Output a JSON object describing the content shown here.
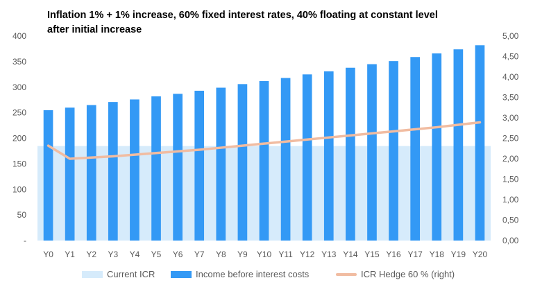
{
  "colors": {
    "area": "#D6EBFB",
    "bar": "#3399F5",
    "line": "#F1BCA1",
    "text": "#595959"
  },
  "chart_data": {
    "type": "bar",
    "title_line1": "Inflation 1% + 1% increase, 60% fixed interest rates, 40% floating at constant level",
    "title_line2": "after initial increase",
    "categories": [
      "Y0",
      "Y1",
      "Y2",
      "Y3",
      "Y4",
      "Y5",
      "Y6",
      "Y7",
      "Y8",
      "Y9",
      "Y10",
      "Y11",
      "Y12",
      "Y13",
      "Y14",
      "Y15",
      "Y16",
      "Y17",
      "Y18",
      "Y19",
      "Y20"
    ],
    "series": [
      {
        "name": "Current ICR",
        "type": "area",
        "axis": "left",
        "values": [
          185,
          185,
          185,
          185,
          185,
          185,
          185,
          185,
          185,
          185,
          185,
          185,
          185,
          185,
          185,
          185,
          185,
          185,
          185,
          185,
          185
        ]
      },
      {
        "name": "Income before interest costs",
        "type": "bar",
        "axis": "left",
        "values": [
          255,
          260,
          265,
          271,
          276,
          282,
          287,
          293,
          299,
          306,
          312,
          318,
          325,
          331,
          338,
          345,
          351,
          359,
          366,
          374,
          382
        ]
      },
      {
        "name": "ICR Hedge 60 % (right)",
        "type": "line",
        "axis": "right",
        "values": [
          2.32,
          2.0,
          2.03,
          2.06,
          2.1,
          2.14,
          2.18,
          2.22,
          2.27,
          2.32,
          2.37,
          2.42,
          2.47,
          2.52,
          2.57,
          2.62,
          2.67,
          2.72,
          2.77,
          2.83,
          2.89
        ]
      }
    ],
    "y_left": {
      "range": [
        0,
        400
      ],
      "ticks": [
        "-",
        "50",
        "100",
        "150",
        "200",
        "250",
        "300",
        "350",
        "400"
      ]
    },
    "y_right": {
      "range": [
        0,
        5
      ],
      "ticks": [
        "0,00",
        "0,50",
        "1,00",
        "1,50",
        "2,00",
        "2,50",
        "3,00",
        "3,50",
        "4,00",
        "4,50",
        "5,00"
      ]
    },
    "grid": false,
    "legend_position": "bottom"
  }
}
